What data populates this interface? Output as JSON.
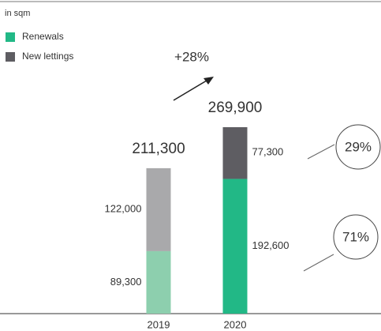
{
  "chart_data": {
    "type": "stacked-bar",
    "subtitle": "in sqm",
    "categories": [
      "2019",
      "2020"
    ],
    "series": [
      {
        "name": "Renewals",
        "colors": [
          "#8dcfae",
          "#22b886"
        ],
        "values": [
          89300,
          192600
        ],
        "value_labels": [
          "89,300",
          "192,600"
        ]
      },
      {
        "name": "New lettings",
        "colors": [
          "#a9a9ab",
          "#5e5d62"
        ],
        "values": [
          122000,
          77300
        ],
        "value_labels": [
          "122,000",
          "77,300"
        ]
      }
    ],
    "totals": [
      211300,
      269900
    ],
    "totals_labels": [
      "211,300",
      "269,900"
    ],
    "annotations": {
      "growth": "+28%",
      "shares": [
        "29%",
        "71%"
      ]
    }
  }
}
